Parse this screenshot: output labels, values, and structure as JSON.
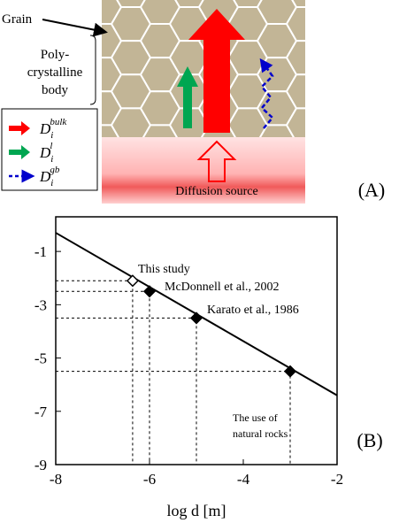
{
  "diagram": {
    "grain_label": "Grain",
    "body_label": [
      "Poly-",
      "crystalline",
      "body"
    ],
    "legend": [
      {
        "symbol": "D",
        "sub": "i",
        "sup": "bulk",
        "color": "#ff0000"
      },
      {
        "symbol": "D",
        "sub": "i",
        "sup": "l",
        "color": "#00a651"
      },
      {
        "symbol": "D",
        "sub": "i",
        "sup": "gb",
        "color": "#0000cc"
      }
    ],
    "source_label": "Diffusion source",
    "panel_label": "(A)"
  },
  "chart_data": {
    "type": "line",
    "panel_label": "(B)",
    "xlabel": "log d [m]",
    "xlim": [
      -8,
      -2
    ],
    "xticks": [
      -8,
      -6,
      -4,
      -2
    ],
    "ylim": [
      -9,
      0.3
    ],
    "yticks": [
      -9,
      -7,
      -5,
      -3,
      -1
    ],
    "series": [
      {
        "color": "#000000",
        "x": [
          -8,
          -2
        ],
        "values": [
          -0.3,
          -6.4
        ]
      }
    ],
    "points": {
      "x": [
        -6.36,
        -6,
        -5,
        -3
      ],
      "values": [
        -2.1,
        -2.5,
        -3.5,
        -5.5
      ],
      "markers": [
        "open-diamond",
        "diamond",
        "diamond",
        "diamond"
      ]
    },
    "annotations": [
      [
        "This study"
      ],
      [
        "McDonnell et al., 2002"
      ],
      [
        "Karato et al., 1986"
      ],
      [
        "The use of",
        "natural rocks"
      ]
    ]
  }
}
